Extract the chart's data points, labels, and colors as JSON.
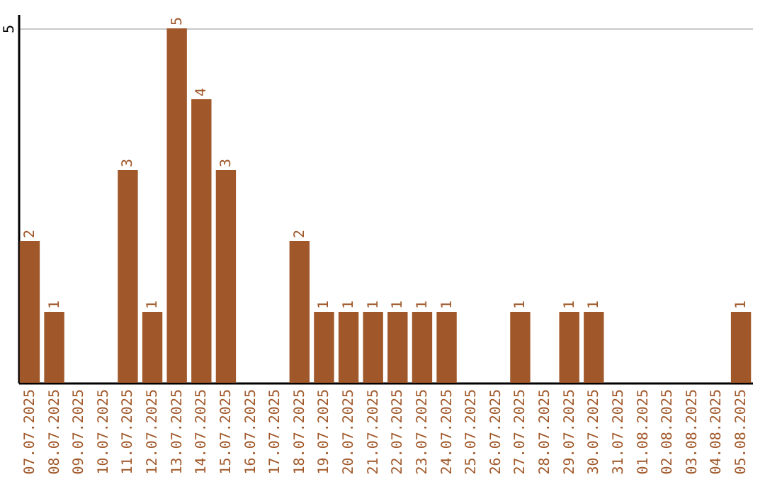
{
  "chart_data": {
    "type": "bar",
    "categories": [
      "07.07.2025",
      "08.07.2025",
      "09.07.2025",
      "10.07.2025",
      "11.07.2025",
      "12.07.2025",
      "13.07.2025",
      "14.07.2025",
      "15.07.2025",
      "16.07.2025",
      "17.07.2025",
      "18.07.2025",
      "19.07.2025",
      "20.07.2025",
      "21.07.2025",
      "22.07.2025",
      "23.07.2025",
      "24.07.2025",
      "25.07.2025",
      "26.07.2025",
      "27.07.2025",
      "28.07.2025",
      "29.07.2025",
      "30.07.2025",
      "31.07.2025",
      "01.08.2025",
      "02.08.2025",
      "03.08.2025",
      "04.08.2025",
      "05.08.2025"
    ],
    "values": [
      2,
      1,
      0,
      0,
      3,
      1,
      5,
      4,
      3,
      0,
      0,
      2,
      1,
      1,
      1,
      1,
      1,
      1,
      0,
      0,
      1,
      0,
      1,
      1,
      0,
      0,
      0,
      0,
      0,
      1
    ],
    "value_labels": [
      "2",
      "1",
      null,
      null,
      "3",
      "1",
      "5",
      "4",
      "3",
      null,
      null,
      "2",
      "1",
      "1",
      "1",
      "1",
      "1",
      "1",
      null,
      null,
      "1",
      null,
      "1",
      "1",
      null,
      null,
      null,
      null,
      null,
      "1"
    ],
    "color": "#a0582a",
    "ylim": [
      0,
      5.2
    ],
    "yticks": [
      5
    ],
    "grid": "y"
  }
}
